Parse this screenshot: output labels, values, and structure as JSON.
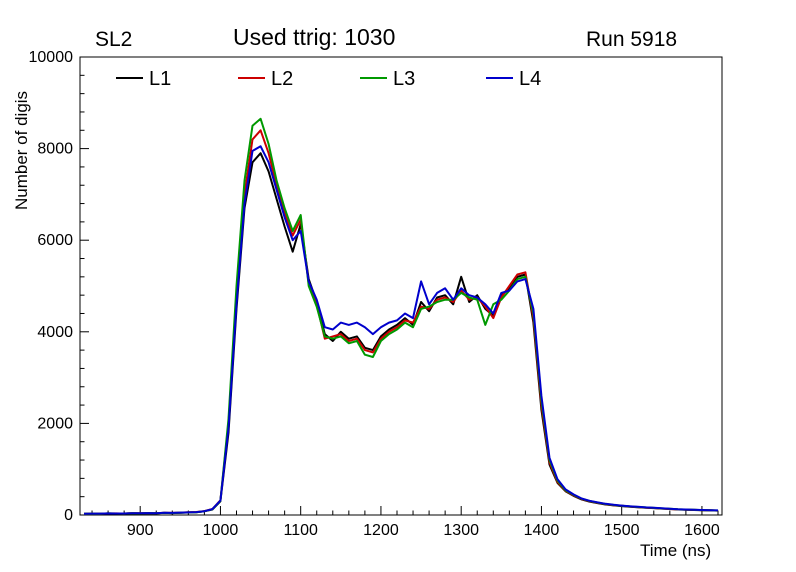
{
  "header": {
    "left": "SL2",
    "center": "Used ttrig: 1030",
    "right": "Run 5918"
  },
  "chart_data": {
    "type": "line",
    "title": "Used ttrig: 1030",
    "xlabel": "Time (ns)",
    "ylabel": "Number of digis",
    "xlim": [
      825,
      1625
    ],
    "ylim": [
      0,
      10000
    ],
    "grid": false,
    "legend_position": "top-inside-horizontal",
    "xticks": [
      900,
      1000,
      1100,
      1200,
      1300,
      1400,
      1500,
      1600
    ],
    "yticks": [
      0,
      2000,
      4000,
      6000,
      8000,
      10000
    ],
    "x": [
      830,
      840,
      850,
      860,
      870,
      880,
      890,
      900,
      910,
      920,
      930,
      940,
      950,
      960,
      970,
      980,
      990,
      1000,
      1010,
      1020,
      1030,
      1040,
      1050,
      1060,
      1070,
      1080,
      1090,
      1100,
      1110,
      1120,
      1130,
      1140,
      1150,
      1160,
      1170,
      1180,
      1190,
      1200,
      1210,
      1220,
      1230,
      1240,
      1250,
      1260,
      1270,
      1280,
      1290,
      1300,
      1310,
      1320,
      1330,
      1340,
      1350,
      1360,
      1370,
      1380,
      1390,
      1400,
      1410,
      1420,
      1430,
      1440,
      1450,
      1460,
      1470,
      1480,
      1490,
      1500,
      1510,
      1520,
      1530,
      1540,
      1550,
      1560,
      1570,
      1580,
      1590,
      1600,
      1610,
      1620
    ],
    "series": [
      {
        "name": "L1",
        "color": "#000000",
        "values": [
          25,
          30,
          28,
          35,
          30,
          32,
          38,
          35,
          40,
          38,
          45,
          42,
          50,
          55,
          60,
          80,
          120,
          300,
          1800,
          4500,
          6700,
          7700,
          7900,
          7500,
          6900,
          6300,
          5750,
          6350,
          5150,
          4650,
          3950,
          3800,
          4000,
          3850,
          3900,
          3650,
          3600,
          3900,
          4050,
          4150,
          4300,
          4150,
          4650,
          4450,
          4750,
          4800,
          4600,
          5200,
          4650,
          4800,
          4500,
          4350,
          4800,
          4950,
          5200,
          5250,
          4200,
          2300,
          1100,
          700,
          520,
          420,
          340,
          290,
          260,
          230,
          210,
          195,
          180,
          170,
          160,
          150,
          140,
          130,
          120,
          115,
          110,
          105,
          100,
          95
        ]
      },
      {
        "name": "L2",
        "color": "#cc0000",
        "values": [
          28,
          32,
          30,
          33,
          35,
          30,
          40,
          38,
          42,
          40,
          48,
          45,
          52,
          58,
          65,
          85,
          130,
          320,
          2000,
          4800,
          7000,
          8200,
          8400,
          7900,
          7200,
          6600,
          6100,
          6450,
          5050,
          4600,
          3850,
          3900,
          3950,
          3800,
          3850,
          3600,
          3550,
          3850,
          4000,
          4100,
          4250,
          4200,
          4550,
          4500,
          4700,
          4750,
          4650,
          4900,
          4700,
          4750,
          4550,
          4300,
          4750,
          5000,
          5250,
          5300,
          4300,
          2400,
          1150,
          720,
          530,
          430,
          350,
          300,
          265,
          235,
          215,
          200,
          185,
          172,
          162,
          152,
          142,
          132,
          122,
          117,
          112,
          107,
          102,
          97
        ]
      },
      {
        "name": "L3",
        "color": "#009900",
        "values": [
          26,
          30,
          29,
          34,
          32,
          31,
          39,
          36,
          41,
          39,
          46,
          44,
          51,
          56,
          62,
          82,
          125,
          310,
          2100,
          5000,
          7300,
          8500,
          8650,
          8100,
          7300,
          6700,
          6200,
          6550,
          5000,
          4550,
          3900,
          3850,
          3900,
          3750,
          3800,
          3500,
          3450,
          3800,
          3950,
          4050,
          4200,
          4100,
          4500,
          4550,
          4650,
          4700,
          4700,
          4850,
          4750,
          4700,
          4150,
          4600,
          4700,
          4900,
          5150,
          5200,
          4400,
          2500,
          1200,
          750,
          540,
          440,
          355,
          305,
          270,
          240,
          218,
          202,
          188,
          175,
          165,
          155,
          145,
          135,
          125,
          118,
          113,
          108,
          103,
          98
        ]
      },
      {
        "name": "L4",
        "color": "#0000cc",
        "values": [
          27,
          31,
          30,
          34,
          33,
          32,
          40,
          37,
          42,
          40,
          47,
          45,
          52,
          57,
          63,
          83,
          128,
          315,
          1900,
          4600,
          6800,
          7950,
          8050,
          7700,
          7100,
          6500,
          6000,
          6200,
          5100,
          4700,
          4100,
          4050,
          4200,
          4150,
          4200,
          4100,
          3950,
          4100,
          4200,
          4250,
          4400,
          4300,
          5100,
          4600,
          4850,
          4950,
          4700,
          4950,
          4800,
          4750,
          4600,
          4400,
          4850,
          4900,
          5100,
          5150,
          4500,
          2600,
          1250,
          780,
          560,
          450,
          360,
          310,
          275,
          245,
          222,
          205,
          190,
          178,
          167,
          157,
          147,
          137,
          127,
          120,
          115,
          110,
          105,
          100
        ]
      }
    ]
  }
}
